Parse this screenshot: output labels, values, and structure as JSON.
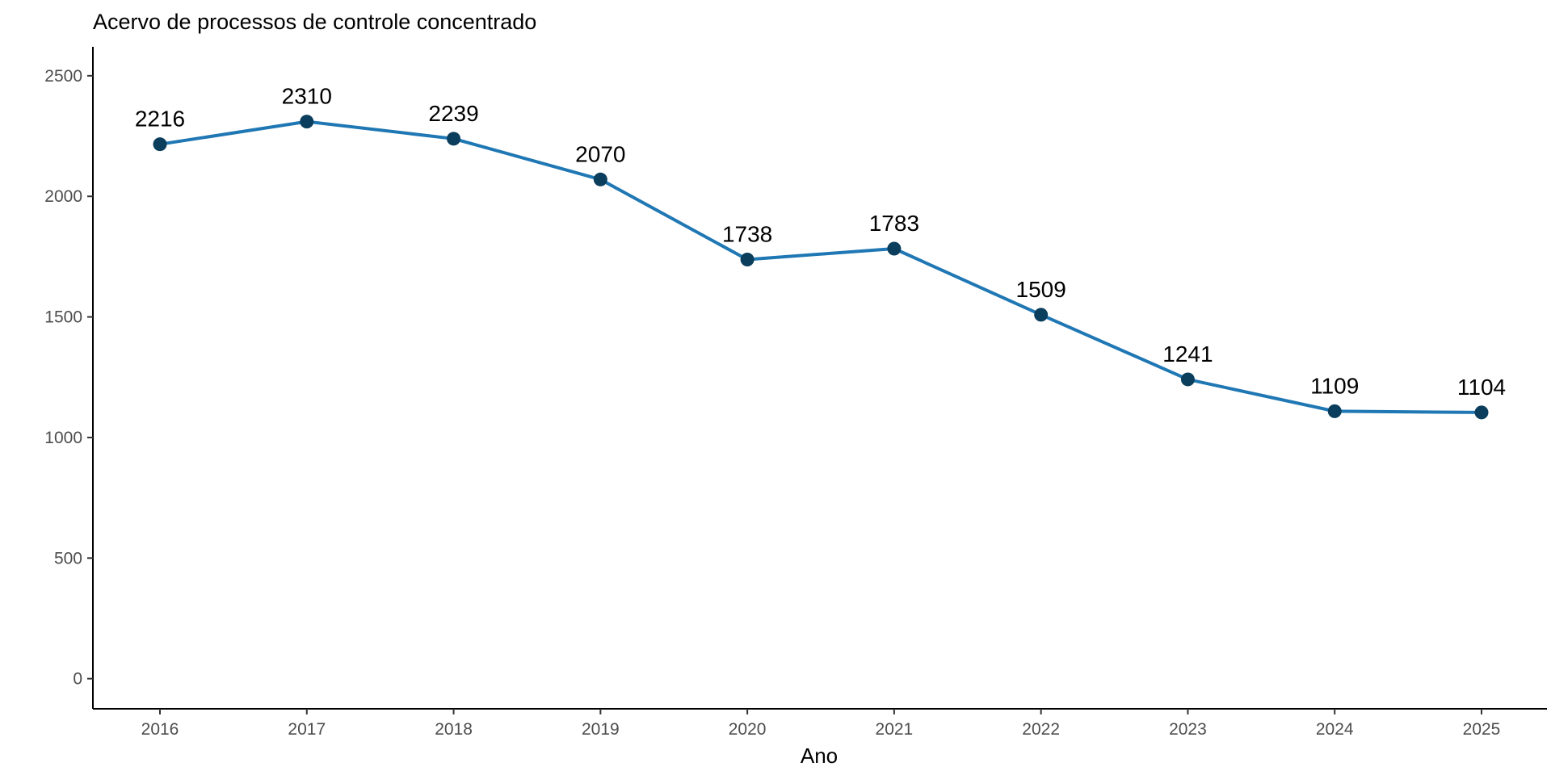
{
  "chart_data": {
    "type": "line",
    "title": "Acervo de processos de controle concentrado",
    "xlabel": "Ano",
    "ylabel": "",
    "x": [
      "2016",
      "2017",
      "2018",
      "2019",
      "2020",
      "2021",
      "2022",
      "2023",
      "2024",
      "2025"
    ],
    "series": [
      {
        "values": [
          2216,
          2310,
          2239,
          2070,
          1738,
          1783,
          1509,
          1241,
          1109,
          1104
        ]
      }
    ],
    "data_labels": [
      "2216",
      "2310",
      "2239",
      "2070",
      "1738",
      "1783",
      "1509",
      "1241",
      "1109",
      "1104"
    ],
    "y_ticks": [
      0,
      500,
      1000,
      1500,
      2000,
      2500
    ],
    "y_tick_labels": [
      "0",
      "500",
      "1000",
      "1500",
      "2000",
      "2500"
    ],
    "ylim": [
      -125,
      2620
    ],
    "grid": false,
    "legend": "none",
    "colors": {
      "line": "#1f77b4",
      "point": "#0b3d5c",
      "axis": "#000000",
      "tick_text": "#4d4d4d"
    }
  }
}
